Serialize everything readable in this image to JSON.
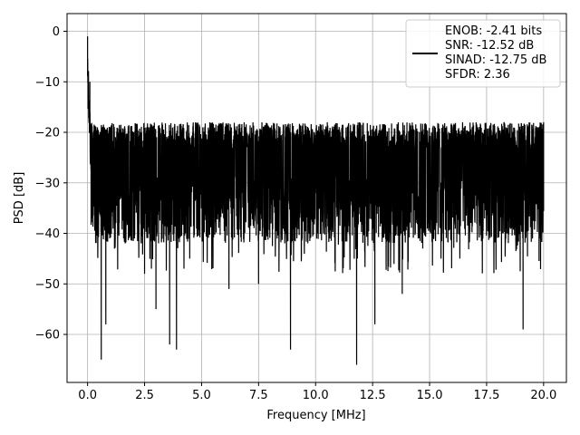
{
  "chart_data": {
    "type": "line",
    "xlabel": "Frequency [MHz]",
    "ylabel": "PSD [dB]",
    "xlim": [
      -0.9,
      21.0
    ],
    "ylim": [
      -69.5,
      3.5
    ],
    "xticks": [
      0.0,
      2.5,
      5.0,
      7.5,
      10.0,
      12.5,
      15.0,
      17.5,
      20.0
    ],
    "xtick_labels": [
      "0.0",
      "2.5",
      "5.0",
      "7.5",
      "10.0",
      "12.5",
      "15.0",
      "17.5",
      "20.0"
    ],
    "yticks": [
      0,
      -10,
      -20,
      -30,
      -40,
      -50,
      -60
    ],
    "ytick_labels": [
      "0",
      "−10",
      "−20",
      "−30",
      "−40",
      "−50",
      "−60"
    ],
    "grid": true,
    "legend_position": "top-right",
    "legend_entries": [
      "ENOB: -2.41 bits",
      "SNR: -12.52 dB",
      "SINAD: -12.75 dB",
      "SFDR: 2.36"
    ],
    "series": [
      {
        "color": "#000000",
        "noise_band_db": [
          -42,
          -18
        ],
        "x": [
          0.0,
          0.02,
          0.05,
          0.1,
          0.15,
          0.2,
          0.3,
          0.4,
          0.5,
          0.6,
          0.7,
          0.8,
          1.0,
          1.5,
          2.0,
          2.5,
          2.8,
          3.0,
          3.6,
          3.9,
          4.5,
          5.0,
          6.2,
          7.5,
          8.0,
          8.9,
          10.0,
          11.8,
          12.6,
          13.8,
          14.7,
          15.5,
          17.0,
          19.1,
          19.4,
          20.0
        ],
        "y": [
          -1,
          -8,
          -15,
          -10,
          -20,
          -28,
          -30,
          -27,
          -35,
          -65,
          -30,
          -58,
          -28,
          -30,
          -27,
          -48,
          -47,
          -55,
          -62,
          -63,
          -28,
          -30,
          -51,
          -50,
          -28,
          -63,
          -30,
          -66,
          -58,
          -52,
          -43,
          -45,
          -30,
          -59,
          -30,
          -18
        ]
      }
    ]
  }
}
